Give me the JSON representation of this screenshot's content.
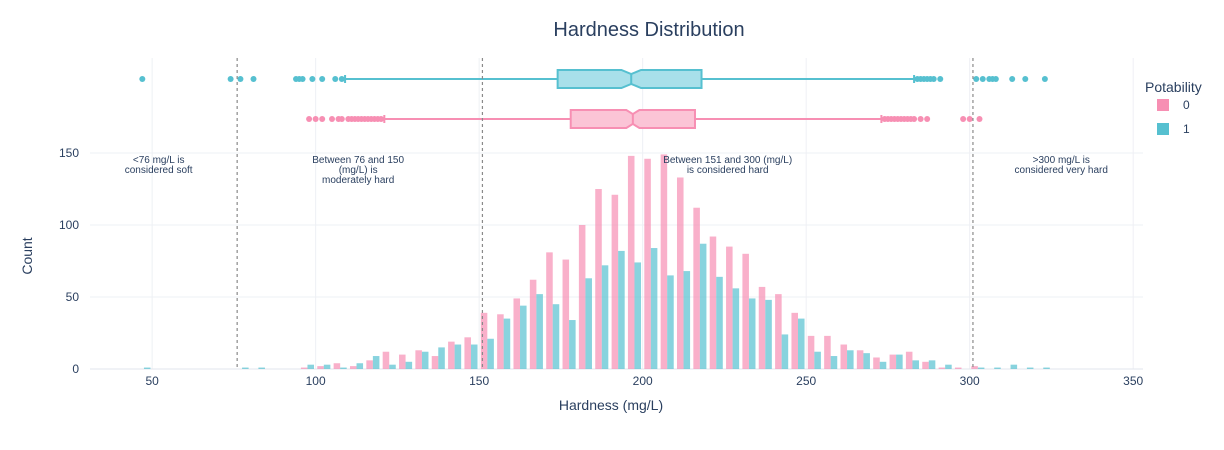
{
  "chart_data": {
    "type": "bar",
    "title": "Hardness Distribution",
    "xlabel": "Hardness (mg/L)",
    "ylabel": "Count",
    "xlim": [
      31,
      353
    ],
    "ylim": [
      0,
      150
    ],
    "x_ticks": [
      50,
      100,
      150,
      200,
      250,
      300,
      350
    ],
    "y_ticks": [
      0,
      50,
      100,
      150
    ],
    "legend": {
      "title": "Potability",
      "position": "right"
    },
    "bin_width": 5,
    "series": [
      {
        "name": "0",
        "color": "#f78fb3",
        "x": [
          75,
          95,
          100,
          105,
          110,
          115,
          120,
          125,
          130,
          135,
          140,
          145,
          150,
          155,
          160,
          165,
          170,
          175,
          180,
          185,
          190,
          195,
          200,
          205,
          210,
          215,
          220,
          225,
          230,
          235,
          240,
          245,
          250,
          255,
          260,
          265,
          270,
          275,
          280,
          285,
          290,
          295,
          300,
          305
        ],
        "values": [
          0,
          1,
          2,
          4,
          2,
          6,
          12,
          10,
          13,
          9,
          19,
          22,
          39,
          38,
          49,
          62,
          81,
          76,
          100,
          125,
          121,
          148,
          146,
          149,
          133,
          112,
          92,
          85,
          80,
          57,
          52,
          39,
          23,
          23,
          17,
          13,
          8,
          10,
          12,
          5,
          1,
          1,
          2,
          0
        ]
      },
      {
        "name": "1",
        "color": "#56c0d0",
        "x": [
          45,
          75,
          80,
          95,
          100,
          105,
          110,
          115,
          120,
          125,
          130,
          135,
          140,
          145,
          150,
          155,
          160,
          165,
          170,
          175,
          180,
          185,
          190,
          195,
          200,
          205,
          210,
          215,
          220,
          225,
          230,
          235,
          240,
          245,
          250,
          255,
          260,
          265,
          270,
          275,
          280,
          285,
          290,
          300,
          305,
          310,
          315,
          320
        ],
        "values": [
          1,
          1,
          1,
          3,
          3,
          1,
          4,
          9,
          3,
          5,
          12,
          15,
          17,
          17,
          21,
          35,
          44,
          52,
          45,
          34,
          63,
          72,
          82,
          74,
          84,
          65,
          68,
          87,
          64,
          56,
          49,
          48,
          24,
          35,
          12,
          9,
          13,
          11,
          5,
          10,
          6,
          6,
          3,
          1,
          1,
          3,
          1,
          1
        ]
      }
    ],
    "box_plots": [
      {
        "name": "1",
        "color": "#56c0d0",
        "fill": "#a8e0ea",
        "q1": 174,
        "median": 196.5,
        "q3": 218,
        "notch_low": 193.5,
        "notch_high": 199.5,
        "whisker_low": 109,
        "whisker_high": 283,
        "outliers": [
          47,
          74,
          77,
          81,
          94,
          95,
          96,
          99,
          102,
          106,
          108,
          284,
          285,
          286,
          287,
          288,
          289,
          291,
          302,
          304,
          306,
          307,
          308,
          313,
          317,
          323
        ]
      },
      {
        "name": "0",
        "color": "#f78fb3",
        "fill": "#fbc4d6",
        "q1": 178,
        "median": 197,
        "q3": 216,
        "notch_low": 195,
        "notch_high": 199,
        "whisker_low": 121,
        "whisker_high": 273,
        "outliers": [
          98,
          100,
          102,
          105,
          107,
          108,
          110,
          111,
          112,
          113,
          114,
          115,
          116,
          117,
          118,
          119,
          120,
          274,
          275,
          276,
          277,
          278,
          279,
          280,
          281,
          282,
          283,
          285,
          287,
          298,
          300,
          303
        ]
      }
    ],
    "reference_lines": [
      76,
      151,
      301
    ],
    "annotations": [
      {
        "x": 52,
        "y": 130,
        "lines": [
          "<76 mg/L is",
          "considered soft"
        ]
      },
      {
        "x": 113,
        "y": 130,
        "lines": [
          "Between 76 and 150",
          "(mg/L) is",
          "moderately hard"
        ]
      },
      {
        "x": 226,
        "y": 130,
        "lines": [
          "Between 151 and 300 (mg/L)",
          "is considered hard"
        ]
      },
      {
        "x": 328,
        "y": 130,
        "lines": [
          ">300 mg/L is",
          "considered very hard"
        ]
      }
    ]
  }
}
